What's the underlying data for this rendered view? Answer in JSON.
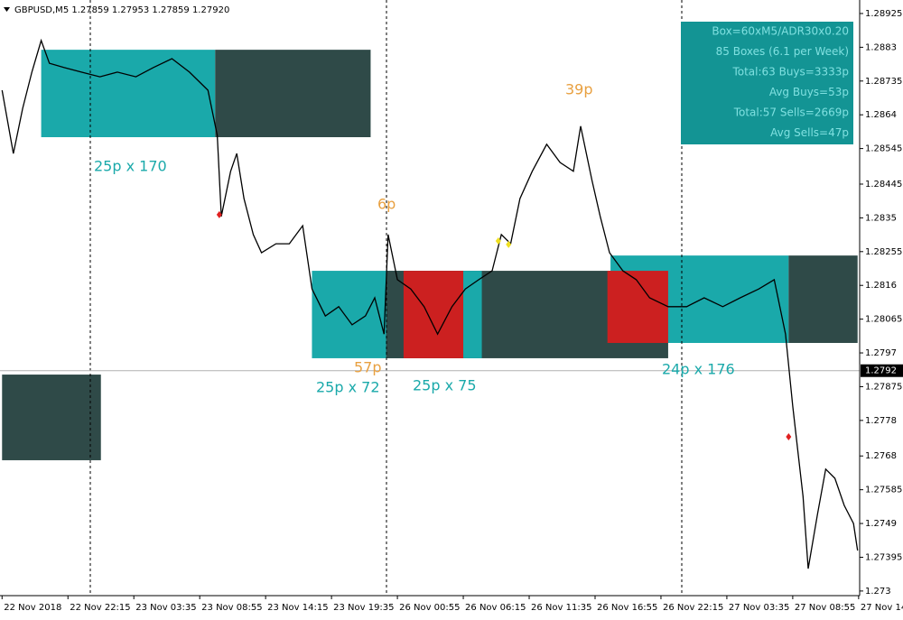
{
  "chart_data": {
    "type": "line",
    "title": "GBPUSD,M5  1.27859 1.27953 1.27859 1.27920",
    "xlim": [
      -2,
      833
    ],
    "ylim": [
      1.27287,
      1.28963
    ],
    "yticks": [
      1.28925,
      1.2883,
      1.28735,
      1.2864,
      1.28545,
      1.28445,
      1.2835,
      1.28255,
      1.2816,
      1.28065,
      1.2797,
      1.27875,
      1.2778,
      1.2768,
      1.27585,
      1.2749,
      1.27395,
      1.273
    ],
    "xticks": [
      {
        "value": 0,
        "label": "22 Nov 2018"
      },
      {
        "value": 64,
        "label": "22 Nov 22:15"
      },
      {
        "value": 128,
        "label": "23 Nov 03:35"
      },
      {
        "value": 192,
        "label": "23 Nov 08:55"
      },
      {
        "value": 256,
        "label": "23 Nov 14:15"
      },
      {
        "value": 320,
        "label": "23 Nov 19:35"
      },
      {
        "value": 384,
        "label": "26 Nov 00:55"
      },
      {
        "value": 448,
        "label": "26 Nov 06:15"
      },
      {
        "value": 512,
        "label": "26 Nov 11:35"
      },
      {
        "value": 576,
        "label": "26 Nov 16:55"
      },
      {
        "value": 640,
        "label": "26 Nov 22:15"
      },
      {
        "value": 704,
        "label": "27 Nov 03:35"
      },
      {
        "value": 768,
        "label": "27 Nov 08:55"
      },
      {
        "value": 832,
        "label": "27 Nov 14"
      }
    ],
    "current_price": 1.2792,
    "series": [
      {
        "color": "#000000",
        "x": [
          0,
          11,
          20,
          29,
          38,
          46,
          60,
          77,
          95,
          112,
          130,
          147,
          165,
          182,
          200,
          209,
          213,
          222,
          228,
          235,
          244,
          252,
          266,
          279,
          292,
          301,
          314,
          327,
          340,
          353,
          362,
          371,
          375,
          384,
          397,
          410,
          423,
          437,
          450,
          463,
          476,
          485,
          494,
          503,
          515,
          529,
          542,
          555,
          562,
          573,
          581,
          590,
          603,
          616,
          629,
          647,
          665,
          682,
          700,
          717,
          735,
          750,
          761,
          768,
          771,
          778,
          783,
          792,
          800,
          809,
          818,
          827,
          831
        ],
        "values": [
          1.28709,
          1.28531,
          1.28658,
          1.2876,
          1.28849,
          1.28785,
          1.28773,
          1.2876,
          1.28747,
          1.2876,
          1.28747,
          1.28773,
          1.28798,
          1.2876,
          1.28709,
          1.28582,
          1.28354,
          1.28481,
          1.28531,
          1.28404,
          1.28303,
          1.28252,
          1.28277,
          1.28277,
          1.28328,
          1.2815,
          1.28074,
          1.281,
          1.28049,
          1.28074,
          1.28125,
          1.28023,
          1.28303,
          1.28176,
          1.2815,
          1.281,
          1.28023,
          1.281,
          1.2815,
          1.28176,
          1.28201,
          1.28303,
          1.28277,
          1.28404,
          1.28481,
          1.28557,
          1.28506,
          1.28481,
          1.28608,
          1.28455,
          1.28354,
          1.28252,
          1.28201,
          1.28176,
          1.28125,
          1.281,
          1.281,
          1.28125,
          1.281,
          1.28125,
          1.2815,
          1.28176,
          1.28023,
          1.2782,
          1.27744,
          1.27566,
          1.27363,
          1.27516,
          1.27643,
          1.27617,
          1.27541,
          1.2749,
          1.27414
        ]
      }
    ],
    "boxes": [
      {
        "x0": 38,
        "x1": 207,
        "top": 1.28823,
        "bottom": 1.28577,
        "color": "#1aa9aa"
      },
      {
        "x0": 207,
        "x1": 358,
        "top": 1.28823,
        "bottom": 1.28577,
        "color": "#2f4a48"
      },
      {
        "x0": 0,
        "x1": 96,
        "top": 1.27909,
        "bottom": 1.27668,
        "color": "#2f4a48"
      },
      {
        "x0": 301,
        "x1": 466,
        "top": 1.28201,
        "bottom": 1.27955,
        "color": "#1aa9aa"
      },
      {
        "x0": 373,
        "x1": 647,
        "top": 1.28201,
        "bottom": 1.27955,
        "color": "#2f4a48"
      },
      {
        "x0": 591,
        "x1": 764,
        "top": 1.28244,
        "bottom": 1.27998,
        "color": "#1aa9aa"
      },
      {
        "x0": 390,
        "x1": 448,
        "top": 1.28201,
        "bottom": 1.27955,
        "color": "#cc2020"
      },
      {
        "x0": 448,
        "x1": 466,
        "top": 1.28201,
        "bottom": 1.27955,
        "color": "#1aa9aa"
      },
      {
        "x0": 588,
        "x1": 647,
        "top": 1.28201,
        "bottom": 1.27998,
        "color": "#cc2020"
      },
      {
        "x0": 764,
        "x1": 831,
        "top": 1.28244,
        "bottom": 1.27998,
        "color": "#2f4a48"
      }
    ],
    "signals": [
      {
        "x": 211,
        "price": 1.28359,
        "color": "#e02020"
      },
      {
        "x": 482,
        "price": 1.28285,
        "color": "#f0e020"
      },
      {
        "x": 492,
        "price": 1.28275,
        "color": "#f0e020"
      },
      {
        "x": 764,
        "price": 1.27734,
        "color": "#e02020"
      }
    ],
    "annotations": [
      "25p x 170",
      "6p",
      "39p",
      "57p",
      "25p x 72",
      "25p x 75",
      "24p x 176"
    ],
    "info_panel": [
      "Box=60xM5/ADR30x0.20",
      "85 Boxes (6.1 per Week)",
      "Total:63 Buys=3333p",
      "Avg Buys=53p",
      "Total:57 Sells=2669p",
      "Avg Sells=47p"
    ]
  }
}
